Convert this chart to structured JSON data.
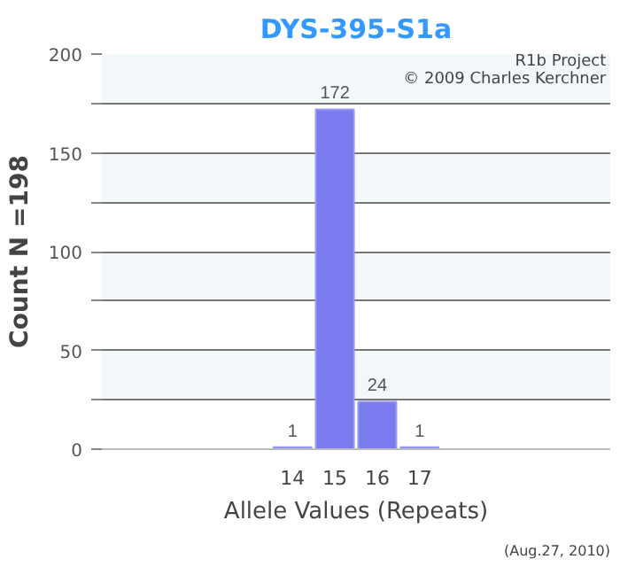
{
  "chart_data": {
    "type": "bar",
    "title": "DYS-395-S1a",
    "xlabel": "Allele Values (Repeats)",
    "ylabel": "Count N =198",
    "categories": [
      null,
      null,
      null,
      null,
      "14",
      "15",
      "16",
      "17",
      null,
      null,
      null,
      null
    ],
    "values": [
      null,
      null,
      null,
      null,
      1,
      172,
      24,
      1,
      null,
      null,
      null,
      null
    ],
    "color": "#7b7bf0",
    "ylim": [
      0,
      200
    ],
    "yticks": [
      0,
      {
        "value": 25,
        "label": null
      },
      50,
      {
        "value": 75,
        "label": null
      },
      100,
      {
        "value": 125,
        "label": null
      },
      150,
      {
        "value": 175,
        "label": null
      },
      200
    ],
    "grid": "y",
    "data_labels": true,
    "annotations": [
      "R1b Project",
      "© 2009 Charles Kerchner",
      "(Aug.27, 2010)"
    ]
  }
}
